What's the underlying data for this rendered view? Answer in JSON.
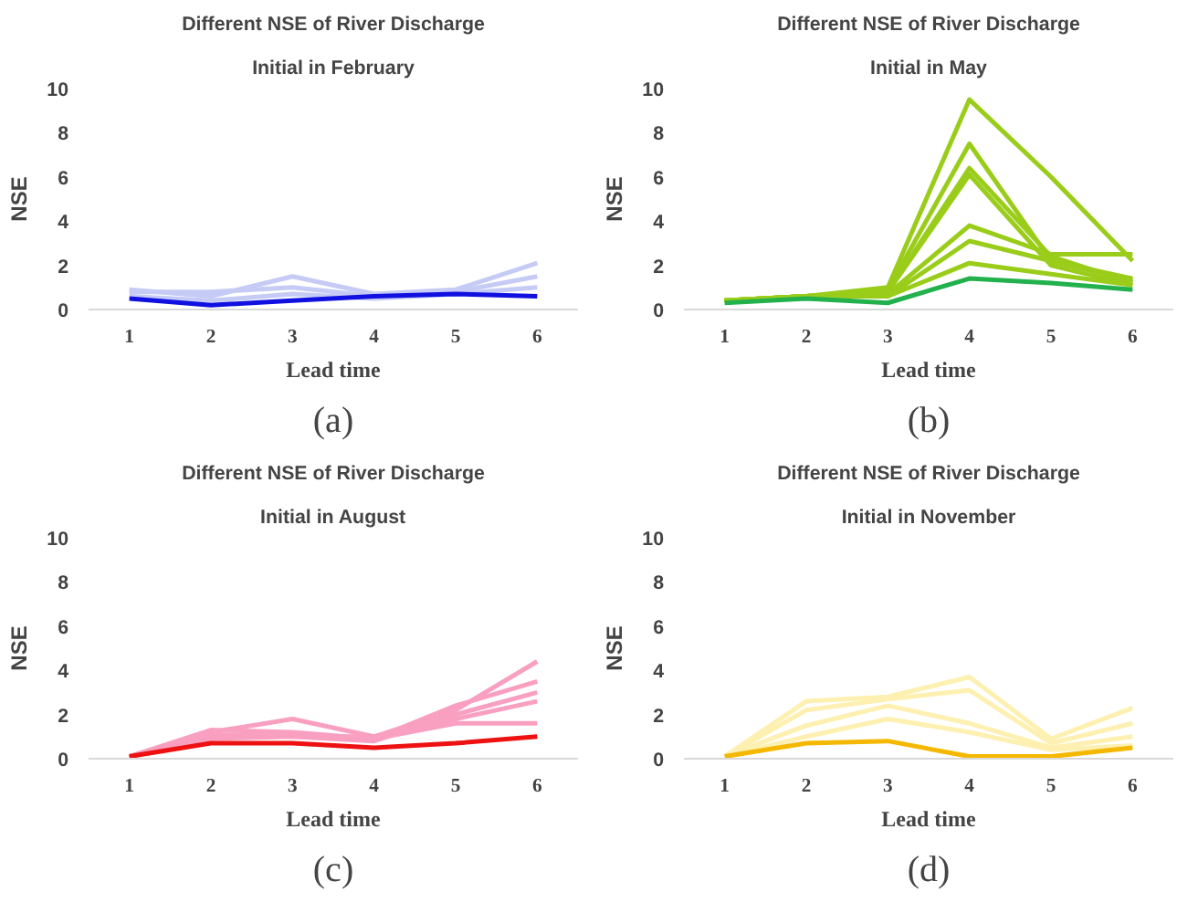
{
  "chart_data": [
    {
      "type": "line",
      "title": "Different NSE of River Discharge",
      "subtitle": "Initial in February",
      "xlabel": "Lead time",
      "ylabel": "NSE",
      "categories": [
        "1",
        "2",
        "3",
        "4",
        "5",
        "6"
      ],
      "ylim": [
        0,
        10
      ],
      "yticks": [
        0,
        2,
        4,
        6,
        8,
        10
      ],
      "grid": false,
      "annotations": [
        "(a)"
      ],
      "series": [
        {
          "color": "#c5cbf5",
          "values": [
            0.9,
            0.6,
            1.5,
            0.7,
            0.9,
            2.1
          ]
        },
        {
          "color": "#c5cbf5",
          "values": [
            0.8,
            0.8,
            1.0,
            0.6,
            0.8,
            1.5
          ]
        },
        {
          "color": "#c5cbf5",
          "values": [
            0.6,
            0.4,
            0.7,
            0.5,
            0.7,
            1.0
          ]
        },
        {
          "color": "#1010e0",
          "values": [
            0.5,
            0.2,
            0.4,
            0.6,
            0.7,
            0.6
          ]
        }
      ]
    },
    {
      "type": "line",
      "title": "Different NSE of River Discharge",
      "subtitle": "Initial in May",
      "xlabel": "Lead time",
      "ylabel": "NSE",
      "categories": [
        "1",
        "2",
        "3",
        "4",
        "5",
        "6"
      ],
      "ylim": [
        0,
        10
      ],
      "yticks": [
        0,
        2,
        4,
        6,
        8,
        10
      ],
      "grid": false,
      "annotations": [
        "(b)"
      ],
      "series": [
        {
          "color": "#9acd1a",
          "values": [
            0.4,
            0.6,
            1.0,
            9.5,
            6.0,
            2.2
          ]
        },
        {
          "color": "#9acd1a",
          "values": [
            0.4,
            0.6,
            0.9,
            7.5,
            2.2,
            1.3
          ]
        },
        {
          "color": "#9acd1a",
          "values": [
            0.4,
            0.6,
            0.8,
            6.4,
            2.4,
            1.2
          ]
        },
        {
          "color": "#9acd1a",
          "values": [
            0.4,
            0.6,
            0.8,
            6.1,
            2.0,
            1.1
          ]
        },
        {
          "color": "#9acd1a",
          "values": [
            0.4,
            0.6,
            0.7,
            3.8,
            2.5,
            2.5
          ]
        },
        {
          "color": "#9acd1a",
          "values": [
            0.4,
            0.6,
            0.6,
            3.1,
            2.2,
            1.4
          ]
        },
        {
          "color": "#9acd1a",
          "values": [
            0.4,
            0.6,
            0.6,
            2.1,
            1.6,
            1.1
          ]
        },
        {
          "color": "#22b14c",
          "values": [
            0.3,
            0.5,
            0.3,
            1.4,
            1.2,
            0.9
          ]
        }
      ]
    },
    {
      "type": "line",
      "title": "Different NSE of River Discharge",
      "subtitle": "Initial in August",
      "xlabel": "Lead time",
      "ylabel": "NSE",
      "categories": [
        "1",
        "2",
        "3",
        "4",
        "5",
        "6"
      ],
      "ylim": [
        0,
        10
      ],
      "yticks": [
        0,
        2,
        4,
        6,
        8,
        10
      ],
      "grid": false,
      "annotations": [
        "(c)"
      ],
      "series": [
        {
          "color": "#f9a0c0",
          "values": [
            0.1,
            1.2,
            1.8,
            1.0,
            2.2,
            4.4
          ]
        },
        {
          "color": "#f9a0c0",
          "values": [
            0.1,
            1.3,
            1.2,
            0.9,
            2.4,
            3.5
          ]
        },
        {
          "color": "#f9a0c0",
          "values": [
            0.1,
            1.1,
            1.0,
            0.8,
            2.0,
            3.0
          ]
        },
        {
          "color": "#f9a0c0",
          "values": [
            0.1,
            0.9,
            1.0,
            1.0,
            1.8,
            2.6
          ]
        },
        {
          "color": "#f9a0c0",
          "values": [
            0.1,
            1.0,
            1.1,
            0.9,
            1.6,
            1.6
          ]
        },
        {
          "color": "#ee1111",
          "values": [
            0.1,
            0.7,
            0.7,
            0.5,
            0.7,
            1.0
          ]
        }
      ]
    },
    {
      "type": "line",
      "title": "Different NSE of River Discharge",
      "subtitle": "Initial in November",
      "xlabel": "Lead time",
      "ylabel": "NSE",
      "categories": [
        "1",
        "2",
        "3",
        "4",
        "5",
        "6"
      ],
      "ylim": [
        0,
        10
      ],
      "yticks": [
        0,
        2,
        4,
        6,
        8,
        10
      ],
      "grid": false,
      "annotations": [
        "(d)"
      ],
      "series": [
        {
          "color": "#fdf0b0",
          "values": [
            0.1,
            2.6,
            2.8,
            3.7,
            0.9,
            2.3
          ]
        },
        {
          "color": "#fdf0b0",
          "values": [
            0.1,
            2.2,
            2.7,
            3.1,
            0.7,
            1.6
          ]
        },
        {
          "color": "#fdf0b0",
          "values": [
            0.1,
            1.5,
            2.4,
            1.6,
            0.5,
            1.0
          ]
        },
        {
          "color": "#fdf0b0",
          "values": [
            0.1,
            1.0,
            1.8,
            1.2,
            0.4,
            0.6
          ]
        },
        {
          "color": "#f5b800",
          "values": [
            0.1,
            0.7,
            0.8,
            0.1,
            0.1,
            0.5
          ]
        }
      ]
    }
  ]
}
